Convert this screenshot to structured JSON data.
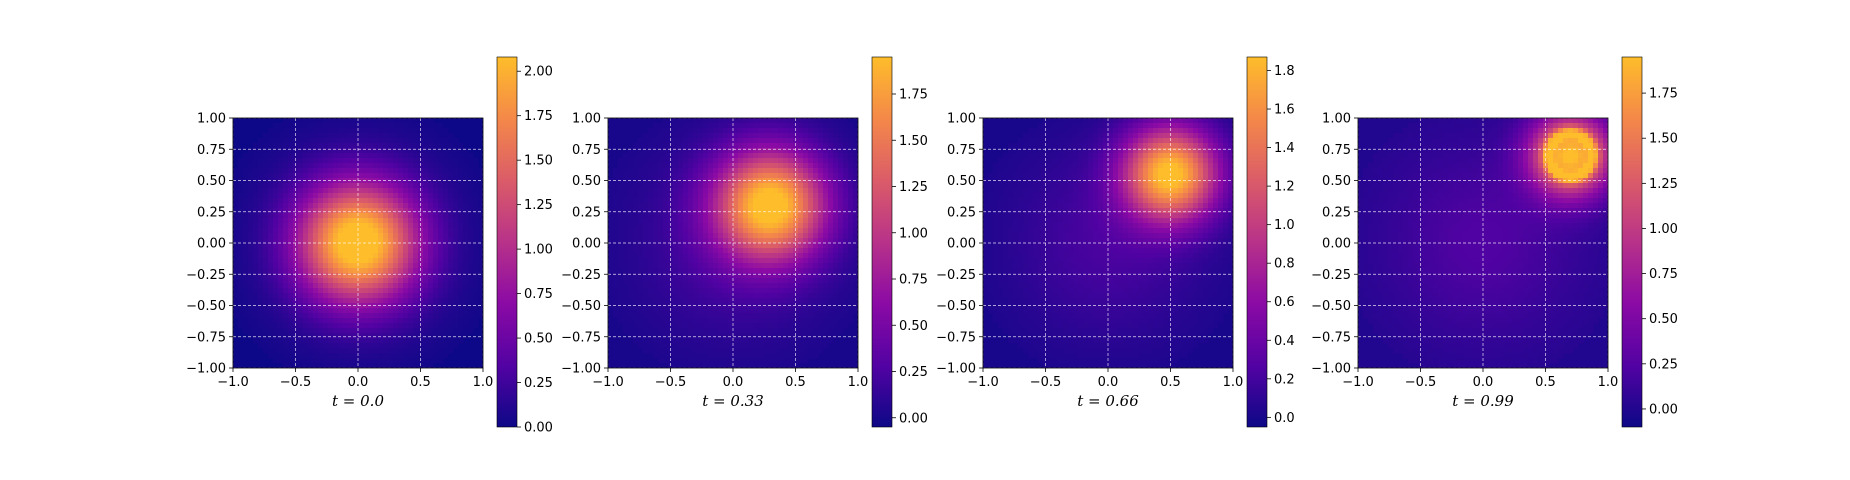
{
  "colors": {
    "colormap": [
      "#0d0887",
      "#5302a3",
      "#8b0aa5",
      "#b83289",
      "#db5c68",
      "#f48849",
      "#febd2a"
    ],
    "background": "#ffffff",
    "grid": "#ffffff"
  },
  "chart_data": [
    {
      "type": "heatmap",
      "title": "t = 0.0",
      "colormap": "plasma",
      "xlim": [
        -1.0,
        1.0
      ],
      "ylim": [
        -1.0,
        1.0
      ],
      "xticks": [
        "−1.0",
        "−0.5",
        "0.0",
        "0.5",
        "1.0"
      ],
      "yticks": [
        "1.00",
        "0.75",
        "0.50",
        "0.25",
        "0.00",
        "−0.25",
        "−0.50",
        "−0.75",
        "−1.00"
      ],
      "grid": true,
      "colorbar": {
        "range": [
          0.0,
          2.08
        ],
        "ticks": [
          0.0,
          0.25,
          0.5,
          0.75,
          1.0,
          1.25,
          1.5,
          1.75,
          2.0
        ],
        "tick_labels": [
          "0.00",
          "0.25",
          "0.50",
          "0.75",
          "1.00",
          "1.25",
          "1.50",
          "1.75",
          "2.00"
        ]
      },
      "field": {
        "peak_x": 0.0,
        "peak_y": 0.0,
        "peak_value": 2.08,
        "spread": 0.32,
        "ring": false
      }
    },
    {
      "type": "heatmap",
      "title": "t = 0.33",
      "colormap": "plasma",
      "xlim": [
        -1.0,
        1.0
      ],
      "ylim": [
        -1.0,
        1.0
      ],
      "xticks": [
        "−1.0",
        "−0.5",
        "0.0",
        "0.5",
        "1.0"
      ],
      "yticks": [
        "1.00",
        "0.75",
        "0.50",
        "0.25",
        "0.00",
        "−0.25",
        "−0.50",
        "−0.75",
        "−1.00"
      ],
      "grid": true,
      "colorbar": {
        "range": [
          -0.05,
          1.95
        ],
        "ticks": [
          0.0,
          0.25,
          0.5,
          0.75,
          1.0,
          1.25,
          1.5,
          1.75
        ],
        "tick_labels": [
          "0.00",
          "0.25",
          "0.50",
          "0.75",
          "1.00",
          "1.25",
          "1.50",
          "1.75"
        ]
      },
      "field": {
        "peak_x": 0.3,
        "peak_y": 0.3,
        "peak_value": 1.95,
        "spread": 0.3,
        "ring": false
      }
    },
    {
      "type": "heatmap",
      "title": "t = 0.66",
      "colormap": "plasma",
      "xlim": [
        -1.0,
        1.0
      ],
      "ylim": [
        -1.0,
        1.0
      ],
      "xticks": [
        "−1.0",
        "−0.5",
        "0.0",
        "0.5",
        "1.0"
      ],
      "yticks": [
        "1.00",
        "0.75",
        "0.50",
        "0.25",
        "0.00",
        "−0.25",
        "−0.50",
        "−0.75",
        "−1.00"
      ],
      "grid": true,
      "colorbar": {
        "range": [
          -0.05,
          1.87
        ],
        "ticks": [
          0.0,
          0.2,
          0.4,
          0.6,
          0.8,
          1.0,
          1.2,
          1.4,
          1.6,
          1.8
        ],
        "tick_labels": [
          "0.0",
          "0.2",
          "0.4",
          "0.6",
          "0.8",
          "1.0",
          "1.2",
          "1.4",
          "1.6",
          "1.8"
        ]
      },
      "field": {
        "peak_x": 0.5,
        "peak_y": 0.55,
        "peak_value": 1.87,
        "spread": 0.26,
        "ring": false
      }
    },
    {
      "type": "heatmap",
      "title": "t = 0.99",
      "colormap": "plasma",
      "xlim": [
        -1.0,
        1.0
      ],
      "ylim": [
        -1.0,
        1.0
      ],
      "xticks": [
        "−1.0",
        "−0.5",
        "0.0",
        "0.5",
        "1.0"
      ],
      "yticks": [
        "1.00",
        "0.75",
        "0.50",
        "0.25",
        "0.00",
        "−0.25",
        "−0.50",
        "−0.75",
        "−1.00"
      ],
      "grid": true,
      "colorbar": {
        "range": [
          -0.1,
          1.95
        ],
        "ticks": [
          0.0,
          0.25,
          0.5,
          0.75,
          1.0,
          1.25,
          1.5,
          1.75
        ],
        "tick_labels": [
          "0.00",
          "0.25",
          "0.50",
          "0.75",
          "1.00",
          "1.25",
          "1.50",
          "1.75"
        ]
      },
      "field": {
        "peak_x": 0.7,
        "peak_y": 0.7,
        "peak_value": 1.95,
        "spread": 0.22,
        "ring": true
      }
    }
  ]
}
